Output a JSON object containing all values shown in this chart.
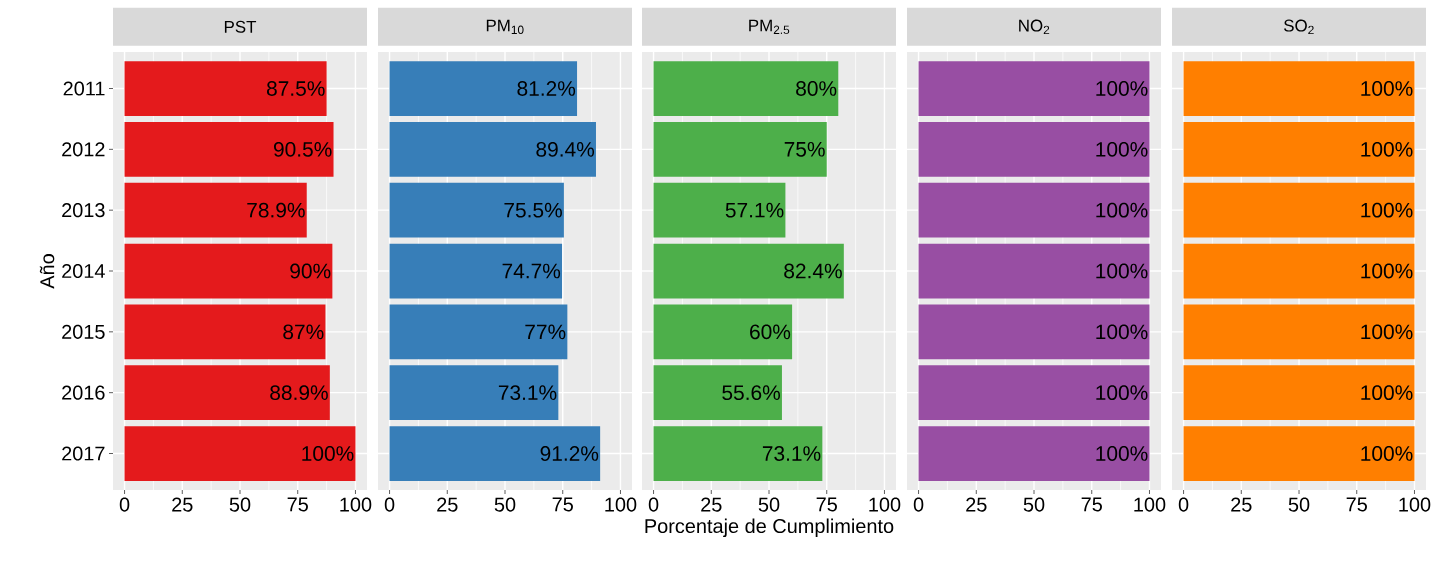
{
  "chart_data": [
    {
      "type": "bar",
      "orientation": "horizontal",
      "title": "PST",
      "ylabel": "Año",
      "categories": [
        "2011",
        "2012",
        "2013",
        "2014",
        "2015",
        "2016",
        "2017"
      ],
      "values": [
        87.5,
        90.5,
        78.9,
        90,
        87,
        88.9,
        100
      ],
      "value_labels": [
        "87.5%",
        "90.5%",
        "78.9%",
        "90%",
        "87%",
        "88.9%",
        "100%"
      ],
      "color": "#e41a1c",
      "xlim": [
        -5,
        105
      ],
      "xticks": [
        0,
        25,
        50,
        75,
        100
      ],
      "grid": true
    },
    {
      "type": "bar",
      "orientation": "horizontal",
      "title": "PM$_{10}$",
      "categories": [
        "2011",
        "2012",
        "2013",
        "2014",
        "2015",
        "2016",
        "2017"
      ],
      "values": [
        81.2,
        89.4,
        75.5,
        74.7,
        77,
        73.1,
        91.2
      ],
      "value_labels": [
        "81.2%",
        "89.4%",
        "75.5%",
        "74.7%",
        "77%",
        "73.1%",
        "91.2%"
      ],
      "color": "#377eb8",
      "xlim": [
        -5,
        105
      ],
      "xticks": [
        0,
        25,
        50,
        75,
        100
      ],
      "grid": true,
      "tick_labels": "x"
    },
    {
      "type": "bar",
      "orientation": "horizontal",
      "title": "PM$_{2.5}$",
      "xlabel": "Porcentaje de Cumplimiento",
      "categories": [
        "2011",
        "2012",
        "2013",
        "2014",
        "2015",
        "2016",
        "2017"
      ],
      "values": [
        80,
        75,
        57.1,
        82.4,
        60,
        55.6,
        73.1
      ],
      "value_labels": [
        "80%",
        "75%",
        "57.1%",
        "82.4%",
        "60%",
        "55.6%",
        "73.1%"
      ],
      "color": "#4daf4a",
      "xlim": [
        -5,
        105
      ],
      "xticks": [
        0,
        25,
        50,
        75,
        100
      ],
      "grid": true,
      "tick_labels": "x"
    },
    {
      "type": "bar",
      "orientation": "horizontal",
      "title": "NO$_{2}$",
      "categories": [
        "2011",
        "2012",
        "2013",
        "2014",
        "2015",
        "2016",
        "2017"
      ],
      "values": [
        100,
        100,
        100,
        100,
        100,
        100,
        100
      ],
      "value_labels": [
        "100%",
        "100%",
        "100%",
        "100%",
        "100%",
        "100%",
        "100%"
      ],
      "color": "#984ea3",
      "xlim": [
        -5,
        105
      ],
      "xticks": [
        0,
        25,
        50,
        75,
        100
      ],
      "grid": true,
      "tick_labels": "x"
    },
    {
      "type": "bar",
      "orientation": "horizontal",
      "title": "SO$_{2}$",
      "categories": [
        "2011",
        "2012",
        "2013",
        "2014",
        "2015",
        "2016",
        "2017"
      ],
      "values": [
        100,
        100,
        100,
        100,
        100,
        100,
        100
      ],
      "value_labels": [
        "100%",
        "100%",
        "100%",
        "100%",
        "100%",
        "100%",
        "100%"
      ],
      "color": "#ff7f00",
      "xlim": [
        -5,
        105
      ],
      "xticks": [
        0,
        25,
        50,
        75,
        100
      ],
      "grid": true,
      "tick_labels": "x"
    }
  ]
}
